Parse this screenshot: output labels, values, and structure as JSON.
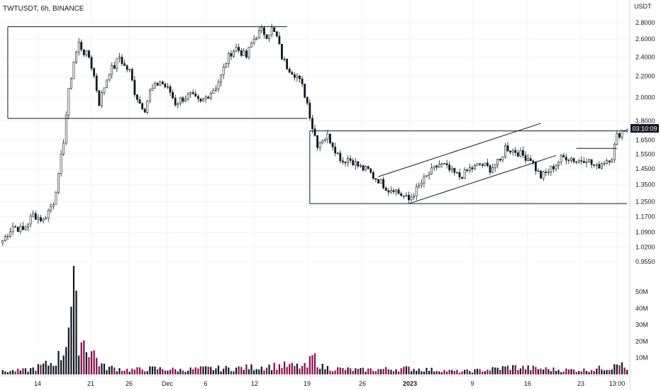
{
  "title": "TWTUSDT, 6h, BINANCE",
  "chart_data": {
    "type": "candlestick",
    "title": "TWTUSDT, 6h, BINANCE",
    "currency": "USDT",
    "y_scale": "log",
    "y_ticks": [
      "2.8000",
      "2.6000",
      "2.4000",
      "2.2000",
      "2.0000",
      "1.8000",
      "1.6500",
      "1.5500",
      "1.4500",
      "1.3500",
      "1.2500",
      "1.1700",
      "1.0900",
      "1.0200",
      "0.9550"
    ],
    "volume_ticks": [
      "50M",
      "40M",
      "30M",
      "20M",
      "10M"
    ],
    "x_ticks": [
      "14",
      "21",
      "26",
      "Dec",
      "6",
      "12",
      "19",
      "26",
      "2023",
      "9",
      "16",
      "23",
      "13:00"
    ],
    "last_price_label": "03:10:09",
    "price_path": [
      [
        0,
        1.05
      ],
      [
        4,
        1.12
      ],
      [
        8,
        1.1
      ],
      [
        12,
        1.18
      ],
      [
        16,
        1.15
      ],
      [
        20,
        1.25
      ],
      [
        22,
        1.4
      ],
      [
        24,
        1.65
      ],
      [
        26,
        2.05
      ],
      [
        28,
        2.35
      ],
      [
        30,
        2.55
      ],
      [
        32,
        2.45
      ],
      [
        34,
        2.4
      ],
      [
        36,
        2.2
      ],
      [
        38,
        1.95
      ],
      [
        40,
        2.1
      ],
      [
        42,
        2.25
      ],
      [
        44,
        2.3
      ],
      [
        46,
        2.4
      ],
      [
        48,
        2.3
      ],
      [
        50,
        2.25
      ],
      [
        52,
        2.05
      ],
      [
        54,
        1.95
      ],
      [
        56,
        1.9
      ],
      [
        58,
        2.05
      ],
      [
        60,
        2.1
      ],
      [
        62,
        2.15
      ],
      [
        64,
        2.1
      ],
      [
        66,
        2.05
      ],
      [
        68,
        1.95
      ],
      [
        70,
        1.98
      ],
      [
        72,
        2.0
      ],
      [
        74,
        2.02
      ],
      [
        76,
        1.98
      ],
      [
        78,
        1.95
      ],
      [
        80,
        2.0
      ],
      [
        82,
        2.05
      ],
      [
        84,
        2.1
      ],
      [
        86,
        2.2
      ],
      [
        88,
        2.35
      ],
      [
        90,
        2.45
      ],
      [
        92,
        2.5
      ],
      [
        94,
        2.45
      ],
      [
        96,
        2.4
      ],
      [
        98,
        2.55
      ],
      [
        100,
        2.65
      ],
      [
        102,
        2.7
      ],
      [
        104,
        2.65
      ],
      [
        106,
        2.72
      ],
      [
        108,
        2.62
      ],
      [
        110,
        2.4
      ],
      [
        112,
        2.3
      ],
      [
        114,
        2.25
      ],
      [
        116,
        2.2
      ],
      [
        118,
        2.1
      ],
      [
        120,
        1.95
      ],
      [
        122,
        1.75
      ],
      [
        124,
        1.62
      ],
      [
        126,
        1.66
      ],
      [
        128,
        1.68
      ],
      [
        130,
        1.62
      ],
      [
        132,
        1.55
      ],
      [
        134,
        1.5
      ],
      [
        136,
        1.52
      ],
      [
        138,
        1.5
      ],
      [
        140,
        1.47
      ],
      [
        142,
        1.45
      ],
      [
        144,
        1.44
      ],
      [
        146,
        1.4
      ],
      [
        148,
        1.38
      ],
      [
        150,
        1.35
      ],
      [
        152,
        1.32
      ],
      [
        154,
        1.33
      ],
      [
        156,
        1.3
      ],
      [
        158,
        1.28
      ],
      [
        160,
        1.26
      ],
      [
        162,
        1.3
      ],
      [
        164,
        1.34
      ],
      [
        166,
        1.38
      ],
      [
        168,
        1.42
      ],
      [
        170,
        1.45
      ],
      [
        172,
        1.48
      ],
      [
        174,
        1.47
      ],
      [
        176,
        1.44
      ],
      [
        178,
        1.42
      ],
      [
        180,
        1.4
      ],
      [
        182,
        1.42
      ],
      [
        184,
        1.45
      ],
      [
        186,
        1.46
      ],
      [
        188,
        1.48
      ],
      [
        190,
        1.47
      ],
      [
        192,
        1.45
      ],
      [
        194,
        1.48
      ],
      [
        196,
        1.5
      ],
      [
        198,
        1.6
      ],
      [
        200,
        1.58
      ],
      [
        202,
        1.57
      ],
      [
        204,
        1.55
      ],
      [
        206,
        1.53
      ],
      [
        208,
        1.52
      ],
      [
        210,
        1.45
      ],
      [
        212,
        1.4
      ],
      [
        214,
        1.42
      ],
      [
        216,
        1.45
      ],
      [
        218,
        1.48
      ],
      [
        220,
        1.52
      ],
      [
        222,
        1.53
      ],
      [
        224,
        1.52
      ],
      [
        226,
        1.5
      ],
      [
        228,
        1.51
      ],
      [
        230,
        1.52
      ],
      [
        232,
        1.48
      ],
      [
        234,
        1.46
      ],
      [
        236,
        1.49
      ],
      [
        238,
        1.51
      ],
      [
        240,
        1.53
      ],
      [
        242,
        1.68
      ],
      [
        244,
        1.72
      ],
      [
        246,
        1.74
      ]
    ],
    "volume_profile": [
      [
        0,
        2
      ],
      [
        10,
        3
      ],
      [
        20,
        8
      ],
      [
        24,
        15
      ],
      [
        26,
        38
      ],
      [
        28,
        52
      ],
      [
        30,
        25
      ],
      [
        32,
        22
      ],
      [
        34,
        18
      ],
      [
        36,
        14
      ],
      [
        38,
        8
      ],
      [
        40,
        5
      ],
      [
        50,
        3
      ],
      [
        60,
        4
      ],
      [
        70,
        3
      ],
      [
        80,
        4
      ],
      [
        90,
        4
      ],
      [
        100,
        5
      ],
      [
        110,
        6
      ],
      [
        120,
        5
      ],
      [
        122,
        12
      ],
      [
        124,
        9
      ],
      [
        126,
        5
      ],
      [
        130,
        4
      ],
      [
        140,
        3
      ],
      [
        160,
        4
      ],
      [
        170,
        3
      ],
      [
        180,
        2
      ],
      [
        190,
        3
      ],
      [
        200,
        5
      ],
      [
        210,
        4
      ],
      [
        220,
        3
      ],
      [
        230,
        3
      ],
      [
        240,
        5
      ],
      [
        242,
        12
      ],
      [
        244,
        6
      ],
      [
        246,
        3
      ]
    ],
    "annotation_lines": [
      {
        "from": [
          2,
          2.75
        ],
        "to": [
          112,
          2.75
        ]
      },
      {
        "from": [
          2,
          1.82
        ],
        "to": [
          120,
          1.82
        ]
      },
      {
        "from": [
          121,
          1.72
        ],
        "to": [
          246,
          1.72
        ]
      },
      {
        "from": [
          121,
          1.24
        ],
        "to": [
          246,
          1.24
        ]
      },
      {
        "from": [
          121,
          1.72
        ],
        "to": [
          121,
          1.24
        ]
      },
      {
        "from": [
          2,
          2.75
        ],
        "to": [
          2,
          1.82
        ]
      },
      {
        "from": [
          148,
          1.4
        ],
        "to": [
          212,
          1.78
        ]
      },
      {
        "from": [
          160,
          1.24
        ],
        "to": [
          218,
          1.54
        ]
      },
      {
        "from": [
          226,
          1.59
        ],
        "to": [
          242,
          1.59
        ]
      }
    ],
    "colors": {
      "up": "#ffffff",
      "down": "#131722",
      "volume_up": "#131722",
      "volume_down": "#880e4f",
      "line": "#131722",
      "grid": "#f0f3fa"
    }
  }
}
